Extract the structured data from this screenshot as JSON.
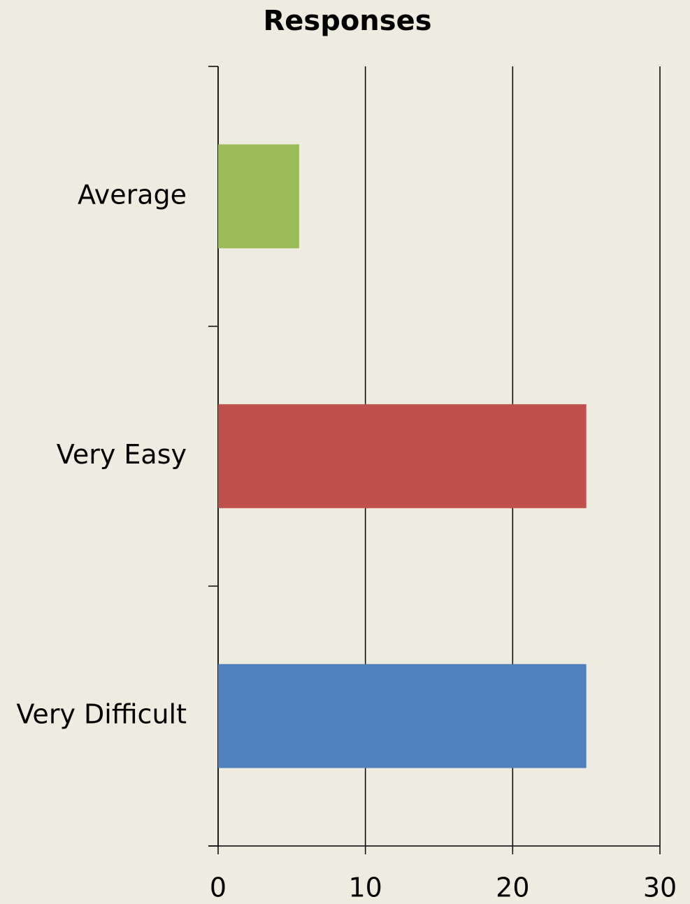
{
  "chart_data": {
    "type": "barh",
    "title": "Responses",
    "categories": [
      "Average",
      "Very Easy",
      "Very Difficult"
    ],
    "values": [
      5.5,
      25,
      25
    ],
    "colors": [
      "#9bbb59",
      "#c0504d",
      "#4f81bd"
    ],
    "xlim": [
      0,
      30
    ],
    "xticks": [
      0,
      10,
      20,
      30
    ],
    "grid": true
  }
}
